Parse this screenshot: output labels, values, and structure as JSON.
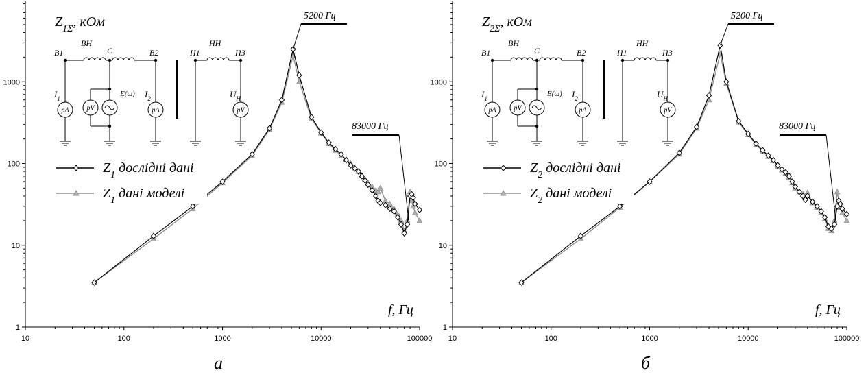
{
  "chart_data": [
    {
      "type": "line",
      "panel_label": "а",
      "xscale": "log",
      "yscale": "log",
      "xlim": [
        10,
        100000
      ],
      "ylim": [
        1,
        10000
      ],
      "x_ticks": [
        "10",
        "100",
        "1000",
        "10000",
        "100000"
      ],
      "y_ticks": [
        "1",
        "10",
        "100",
        "1000"
      ],
      "y_title": {
        "symbol": "Z",
        "sub": "1Σ",
        "unit": ", кОм"
      },
      "x_title": "f, Гц",
      "legend_position": "left",
      "series": [
        {
          "name": "дослідні дані",
          "name_sub": "1",
          "name_prefix": "Z",
          "color": "#000000",
          "marker": "diamond",
          "x": [
            50,
            200,
            500,
            1000,
            2000,
            3000,
            4000,
            5200,
            6000,
            8000,
            10000,
            12000,
            14000,
            16000,
            18000,
            20000,
            22000,
            24000,
            26000,
            28000,
            30000,
            33000,
            36000,
            38000,
            40000,
            45000,
            50000,
            55000,
            60000,
            65000,
            70000,
            75000,
            80000,
            83000,
            86000,
            90000,
            100000
          ],
          "values": [
            3.5,
            13,
            30,
            60,
            130,
            270,
            600,
            2500,
            1200,
            370,
            240,
            180,
            150,
            130,
            110,
            95,
            87,
            80,
            70,
            62,
            55,
            47,
            40,
            35,
            33,
            31,
            28,
            26,
            22,
            18,
            14,
            18,
            40,
            42,
            38,
            32,
            27
          ]
        },
        {
          "name": "дані моделі",
          "name_sub": "1",
          "name_prefix": "Z",
          "color": "#909090",
          "marker": "triangle",
          "x": [
            50,
            200,
            500,
            1000,
            2000,
            3000,
            4000,
            5200,
            6000,
            8000,
            10000,
            12000,
            14000,
            16000,
            18000,
            20000,
            22000,
            24000,
            26000,
            28000,
            30000,
            33000,
            36000,
            38000,
            40000,
            45000,
            50000,
            55000,
            60000,
            65000,
            70000,
            75000,
            80000,
            83000,
            86000,
            90000,
            100000
          ],
          "values": [
            3.5,
            12,
            28,
            58,
            125,
            260,
            560,
            2100,
            1000,
            350,
            235,
            175,
            145,
            125,
            112,
            100,
            88,
            80,
            72,
            64,
            58,
            52,
            47,
            45,
            50,
            35,
            32,
            28,
            24,
            20,
            15,
            20,
            45,
            35,
            30,
            25,
            20
          ]
        }
      ],
      "annotations": [
        "5200 Гц",
        "83000 Гц"
      ],
      "schematic": {
        "nodes": [
          "В1",
          "ВН",
          "С",
          "В2",
          "Н1",
          "НН",
          "НЗ"
        ],
        "source": "E(ω)",
        "currents": [
          {
            "s": "I",
            "sub": "1"
          },
          {
            "s": "I",
            "sub": "2"
          },
          {
            "s": "U",
            "sub": "Н"
          }
        ],
        "meters": [
          "pA",
          "pV",
          "pA",
          "pV"
        ]
      }
    },
    {
      "type": "line",
      "panel_label": "б",
      "xscale": "log",
      "yscale": "log",
      "xlim": [
        10,
        100000
      ],
      "ylim": [
        1,
        10000
      ],
      "x_ticks": [
        "10",
        "100",
        "1000",
        "10000",
        "100000"
      ],
      "y_ticks": [
        "1",
        "10",
        "100",
        "1000"
      ],
      "y_title": {
        "symbol": "Z",
        "sub": "2Σ",
        "unit": ", кОм"
      },
      "x_title": "f, Гц",
      "legend_position": "left",
      "series": [
        {
          "name": "дослідні дані",
          "name_sub": "2",
          "name_prefix": "Z",
          "color": "#000000",
          "marker": "diamond",
          "x": [
            50,
            200,
            500,
            1000,
            2000,
            3000,
            4000,
            5200,
            6000,
            8000,
            10000,
            12000,
            14000,
            16000,
            18000,
            20000,
            22000,
            24000,
            26000,
            28000,
            30000,
            33000,
            36000,
            38000,
            40000,
            45000,
            50000,
            55000,
            60000,
            65000,
            70000,
            75000,
            80000,
            83000,
            86000,
            90000,
            100000
          ],
          "values": [
            3.5,
            13,
            30,
            60,
            135,
            280,
            680,
            2800,
            1000,
            330,
            230,
            175,
            145,
            125,
            110,
            95,
            85,
            78,
            70,
            60,
            52,
            45,
            40,
            36,
            40,
            34,
            30,
            26,
            22,
            17,
            16,
            18,
            30,
            35,
            32,
            28,
            24
          ]
        },
        {
          "name": "дані моделі",
          "name_sub": "2",
          "name_prefix": "Z",
          "color": "#909090",
          "marker": "triangle",
          "x": [
            50,
            200,
            500,
            1000,
            2000,
            3000,
            4000,
            5200,
            6000,
            8000,
            10000,
            12000,
            14000,
            16000,
            18000,
            20000,
            22000,
            24000,
            26000,
            28000,
            30000,
            33000,
            36000,
            38000,
            40000,
            45000,
            50000,
            55000,
            60000,
            65000,
            70000,
            75000,
            80000,
            83000,
            86000,
            90000,
            100000
          ],
          "values": [
            3.5,
            12,
            29,
            60,
            130,
            270,
            600,
            2200,
            950,
            320,
            225,
            170,
            142,
            122,
            108,
            92,
            83,
            76,
            68,
            58,
            50,
            45,
            42,
            40,
            44,
            33,
            29,
            25,
            21,
            16,
            15,
            20,
            45,
            35,
            29,
            25,
            20
          ]
        }
      ],
      "annotations": [
        "5200 Гц",
        "83000 Гц"
      ],
      "schematic": {
        "nodes": [
          "В1",
          "ВН",
          "С",
          "В2",
          "Н1",
          "НН",
          "НЗ"
        ],
        "source": "E(ω)",
        "currents": [
          {
            "s": "I",
            "sub": "1"
          },
          {
            "s": "I",
            "sub": "2"
          },
          {
            "s": "U",
            "sub": "Н"
          }
        ],
        "meters": [
          "pA",
          "pV",
          "pA",
          "pV"
        ]
      }
    }
  ]
}
